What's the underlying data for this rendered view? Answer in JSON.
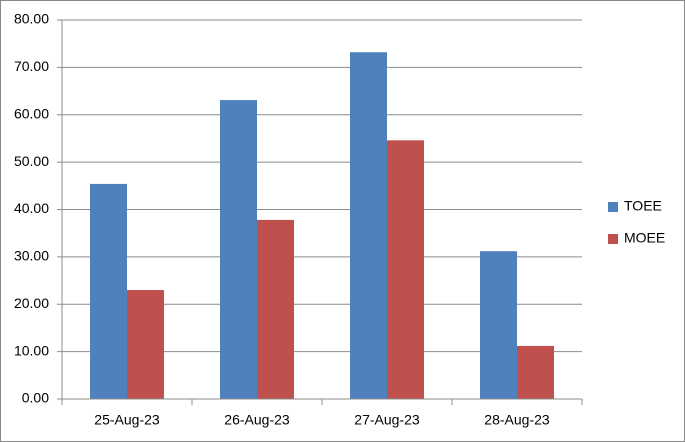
{
  "chart_data": {
    "type": "bar",
    "categories": [
      "25-Aug-23",
      "26-Aug-23",
      "27-Aug-23",
      "28-Aug-23"
    ],
    "series": [
      {
        "name": "TOEE",
        "color": "#4f81bd",
        "values": [
          45.4,
          63.1,
          73.2,
          31.2
        ]
      },
      {
        "name": "MOEE",
        "color": "#c0504d",
        "values": [
          23.0,
          37.8,
          54.6,
          11.2
        ]
      }
    ],
    "ylim": [
      0,
      80
    ],
    "yticks": [
      {
        "value": 0,
        "label": "0.00"
      },
      {
        "value": 10,
        "label": "10.00"
      },
      {
        "value": 20,
        "label": "20.00"
      },
      {
        "value": 30,
        "label": "30.00"
      },
      {
        "value": 40,
        "label": "40.00"
      },
      {
        "value": 50,
        "label": "50.00"
      },
      {
        "value": 60,
        "label": "60.00"
      },
      {
        "value": 70,
        "label": "70.00"
      },
      {
        "value": 80,
        "label": "80.00"
      }
    ],
    "grid": true,
    "legend": "right"
  }
}
